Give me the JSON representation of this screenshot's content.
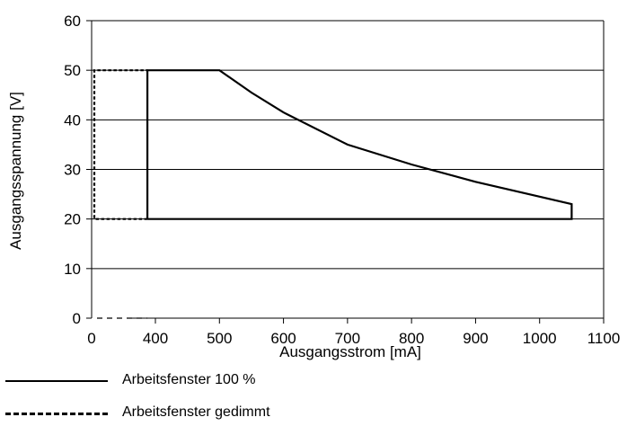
{
  "chart_data": {
    "type": "line",
    "xlabel": "Ausgangsstrom [mA]",
    "ylabel": "Ausgangsspannung [V]",
    "xlim": [
      0,
      1100
    ],
    "ylim": [
      0,
      60
    ],
    "x_axis_break": true,
    "xticks": [
      0,
      400,
      500,
      600,
      700,
      800,
      900,
      1000,
      1100
    ],
    "yticks": [
      0,
      10,
      20,
      30,
      40,
      50,
      60
    ],
    "horizontal_grid": true,
    "legend_placement": "below",
    "series": [
      {
        "name": "Arbeitsfenster 100 %",
        "style": "solid",
        "color": "#000000",
        "points": [
          [
            350,
            20
          ],
          [
            350,
            50
          ],
          [
            500,
            50
          ],
          [
            550,
            45.5
          ],
          [
            600,
            41.5
          ],
          [
            700,
            35
          ],
          [
            800,
            31
          ],
          [
            900,
            27.5
          ],
          [
            1000,
            24.5
          ],
          [
            1050,
            23
          ],
          [
            1050,
            20
          ],
          [
            350,
            20
          ]
        ]
      },
      {
        "name": "Arbeitsfenster gedimmt",
        "style": "dashed",
        "color": "#000000",
        "points": [
          [
            350,
            20
          ],
          [
            0,
            20
          ],
          [
            0,
            50
          ],
          [
            350,
            50
          ]
        ]
      }
    ],
    "below_break_dash": {
      "from": 0,
      "to": 350,
      "y": 0
    }
  }
}
